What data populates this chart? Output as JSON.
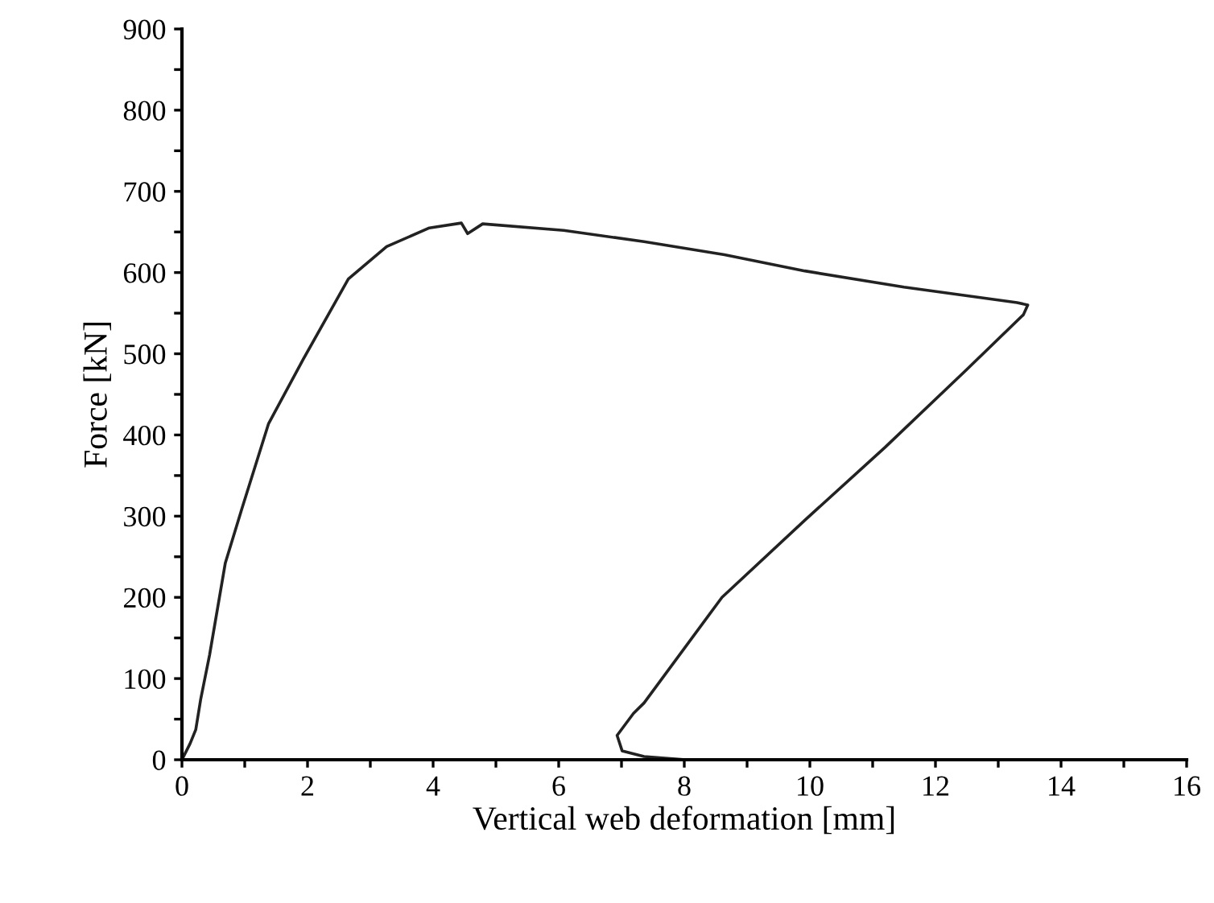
{
  "chart_data": {
    "type": "line",
    "xlabel": "Vertical web deformation [mm]",
    "ylabel": "Force [kN]",
    "series": [
      {
        "color": "#222222",
        "x": [
          0,
          0.13,
          0.22,
          0.3,
          0.44,
          0.69,
          0.95,
          1.38,
          1.93,
          2.65,
          3.26,
          3.94,
          4.45,
          4.55,
          4.79,
          6.08,
          7.36,
          8.64,
          9.92,
          11.5,
          13.3,
          13.47,
          13.4,
          12.49,
          11.2,
          9.92,
          8.6,
          7.36,
          7.19,
          6.93,
          7.01,
          7.36,
          8.0
        ],
        "values": [
          0,
          20,
          37,
          75,
          129,
          242,
          308,
          414,
          493,
          592,
          632,
          655,
          661,
          648,
          660,
          652,
          638,
          622,
          602,
          582,
          563,
          560,
          548,
          480,
          385,
          295,
          200,
          70,
          57,
          30,
          11,
          4,
          0
        ]
      }
    ],
    "xlim": [
      0,
      16
    ],
    "ylim": [
      0,
      900
    ],
    "xticks": [
      0,
      {
        "value": 1,
        "label": null
      },
      2,
      {
        "value": 3,
        "label": null
      },
      4,
      {
        "value": 5,
        "label": null
      },
      6,
      {
        "value": 7,
        "label": null
      },
      8,
      {
        "value": 9,
        "label": null
      },
      10,
      {
        "value": 11,
        "label": null
      },
      12,
      {
        "value": 13,
        "label": null
      },
      14,
      {
        "value": 15,
        "label": null
      },
      16
    ],
    "yticks": [
      0,
      {
        "value": 50,
        "label": null
      },
      100,
      {
        "value": 150,
        "label": null
      },
      200,
      {
        "value": 250,
        "label": null
      },
      300,
      {
        "value": 350,
        "label": null
      },
      400,
      {
        "value": 450,
        "label": null
      },
      500,
      {
        "value": 550,
        "label": null
      },
      600,
      {
        "value": 650,
        "label": null
      },
      700,
      {
        "value": 750,
        "label": null
      },
      800,
      {
        "value": 850,
        "label": null
      },
      900
    ],
    "grid": false
  }
}
